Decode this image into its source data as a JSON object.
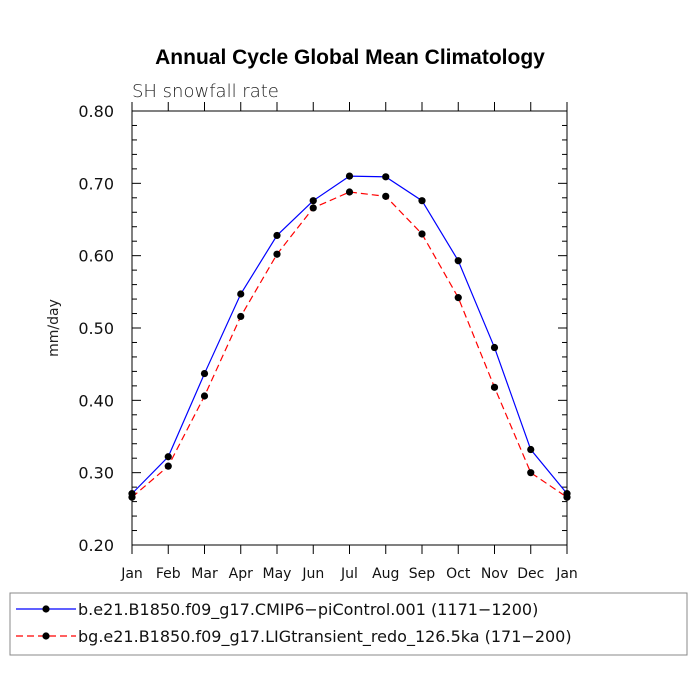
{
  "chart_data": {
    "type": "line",
    "title": "Annual Cycle Global Mean Climatology",
    "subtitle": "SH snowfall rate",
    "xlabel": "",
    "ylabel": "mm/day",
    "ylim": [
      0.2,
      0.8
    ],
    "yticks": [
      0.2,
      0.3,
      0.4,
      0.5,
      0.6,
      0.7,
      0.8
    ],
    "ytick_labels": [
      "0.20",
      "0.30",
      "0.40",
      "0.50",
      "0.60",
      "0.70",
      "0.80"
    ],
    "categories": [
      "Jan",
      "Feb",
      "Mar",
      "Apr",
      "May",
      "Jun",
      "Jul",
      "Aug",
      "Sep",
      "Oct",
      "Nov",
      "Dec",
      "Jan"
    ],
    "grid": false,
    "legend_position": "bottom",
    "series": [
      {
        "name": "b.e21.B1850.f09_g17.CMIP6−piControl.001 (1171−1200)",
        "color": "#0000ff",
        "style": "solid",
        "values": [
          0.271,
          0.322,
          0.437,
          0.547,
          0.628,
          0.676,
          0.71,
          0.709,
          0.676,
          0.593,
          0.473,
          0.332,
          0.271
        ]
      },
      {
        "name": "bg.e21.B1850.f09_g17.LIGtransient_redo_126.5ka (171−200)",
        "color": "#ff0000",
        "style": "dashed",
        "values": [
          0.266,
          0.309,
          0.406,
          0.516,
          0.602,
          0.666,
          0.688,
          0.682,
          0.63,
          0.542,
          0.418,
          0.3,
          0.266
        ]
      }
    ]
  }
}
